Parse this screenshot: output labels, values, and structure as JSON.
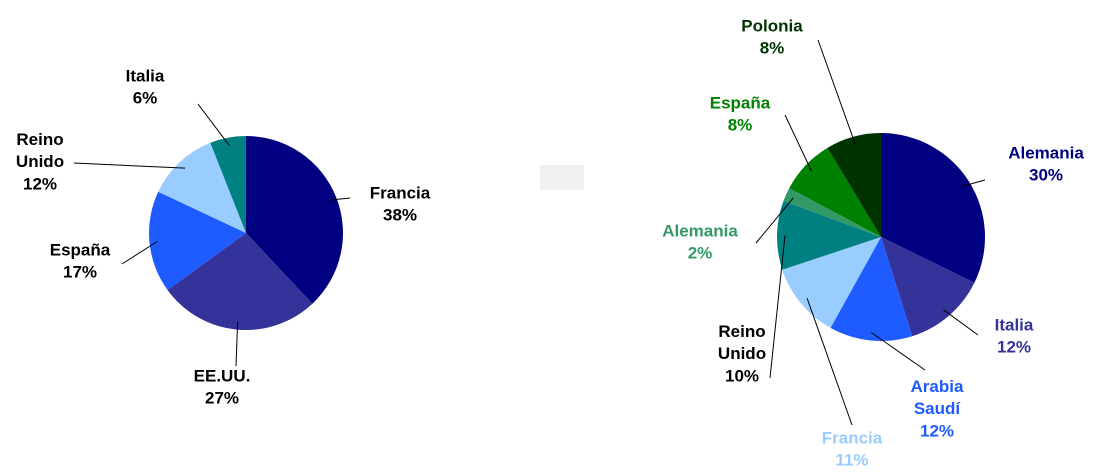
{
  "chart_data": [
    {
      "type": "pie",
      "categories": [
        "Francia",
        "EE.UU.",
        "España",
        "Reino Unido",
        "Italia"
      ],
      "values": [
        38,
        27,
        17,
        12,
        6
      ],
      "value_labels": [
        "38%",
        "27%",
        "17%",
        "12%",
        "6%"
      ],
      "colors": [
        "#000080",
        "#333399",
        "#1f5cff",
        "#99ccff",
        "#008080"
      ],
      "label_colors": [
        "#000000",
        "#000000",
        "#000000",
        "#000000",
        "#000000"
      ]
    },
    {
      "type": "pie",
      "categories": [
        "Alemania",
        "Italia",
        "Arabia Saudí",
        "Francia",
        "Reino Unido",
        "Alemania",
        "España",
        "Polonia"
      ],
      "values": [
        30,
        12,
        12,
        11,
        10,
        2,
        8,
        8
      ],
      "value_labels": [
        "30%",
        "12%",
        "12%",
        "11%",
        "10%",
        "2%",
        "8%",
        "8%"
      ],
      "colors": [
        "#000080",
        "#333399",
        "#1f5cff",
        "#99ccff",
        "#008080",
        "#339966",
        "#008000",
        "#003300"
      ],
      "label_colors": [
        "#000080",
        "#333399",
        "#1f5cff",
        "#99ccff",
        "#000000",
        "#339966",
        "#008000",
        "#003300"
      ]
    }
  ]
}
